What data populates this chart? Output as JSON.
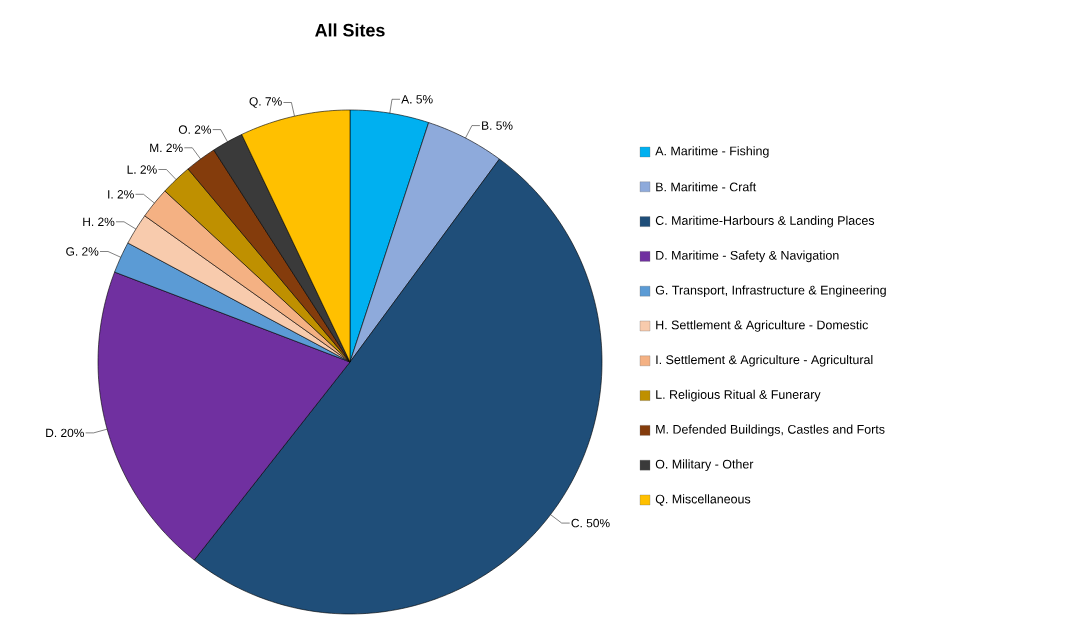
{
  "chart_data": {
    "type": "pie",
    "title": "All Sites",
    "categories": [
      "A. Maritime - Fishing",
      "B. Maritime - Craft",
      "C. Maritime-Harbours & Landing Places",
      "D. Maritime - Safety & Navigation",
      "G. Transport, Infrastructure & Engineering",
      "H. Settlement & Agriculture - Domestic",
      "I. Settlement & Agriculture - Agricultural",
      "L. Religious Ritual & Funerary",
      "M. Defended Buildings, Castles and Forts",
      "O. Military - Other",
      "Q. Miscellaneous"
    ],
    "values": [
      5,
      5,
      50,
      20,
      2,
      2,
      2,
      2,
      2,
      2,
      7
    ],
    "value_labels": [
      "A. 5%",
      "B. 5%",
      "C. 50%",
      "D. 20%",
      "G. 2%",
      "H. 2%",
      "I. 2%",
      "L. 2%",
      "M. 2%",
      "O. 2%",
      "Q. 7%"
    ],
    "colors": [
      "#00b0f0",
      "#8eaadb",
      "#1f4e79",
      "#7030a0",
      "#5b9bd5",
      "#f8cbad",
      "#f4b183",
      "#bf9000",
      "#843c0c",
      "#3a3a3a",
      "#ffc000"
    ],
    "legend": "right"
  }
}
